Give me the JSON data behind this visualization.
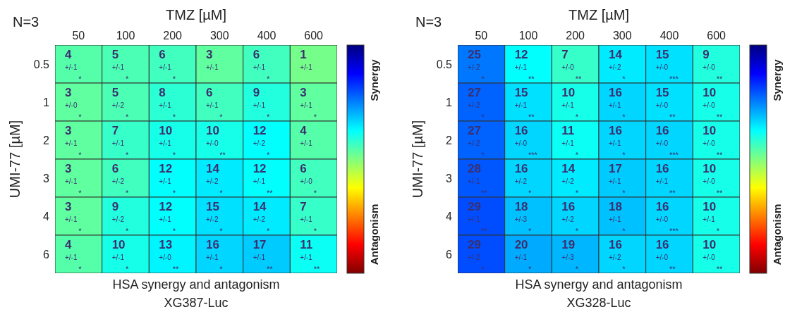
{
  "chart_data": [
    {
      "type": "heatmap",
      "data_labels": true,
      "xlabel": "TMZ [µM]",
      "ylabel": "UMI-77 [µM]",
      "title": "HSA synergy and antagonism",
      "subtitle": "XG387-Luc",
      "clabel": [
        "Synergy",
        "Antagonism"
      ],
      "categories": [
        "50",
        "100",
        "200",
        "300",
        "400",
        "600"
      ],
      "y_categories": [
        "0.5",
        "1",
        "2",
        "3",
        "4",
        "6"
      ],
      "cells": [
        [
          4,
          5,
          6,
          3,
          6,
          1
        ],
        [
          3,
          5,
          8,
          6,
          9,
          3
        ],
        [
          3,
          7,
          10,
          10,
          12,
          4
        ],
        [
          3,
          6,
          12,
          14,
          12,
          6
        ],
        [
          3,
          9,
          12,
          15,
          14,
          7
        ],
        [
          4,
          10,
          13,
          16,
          17,
          11
        ]
      ],
      "annotations": [
        "N=3",
        "+/-1 *",
        "+/-1 *",
        "+/-1 *",
        "+/-1",
        "+/-1 *",
        "+/-1",
        "+/-0 *",
        "+/-2 *",
        "+/-1 *",
        "+/-1 *",
        "+/-1 *",
        "+/-1 *",
        "+/-1 *",
        "+/-1 *",
        "+/-1 *",
        "+/-0 **",
        "+/-2 *",
        "+/-1",
        "+/-1 *",
        "+/-2 *",
        "+/-1 *",
        "+/-2 *",
        "+/-1 **",
        "+/-0 *",
        "+/-1 *",
        "+/-2 *",
        "+/-1 *",
        "+/-2 *",
        "+/-2 *",
        "+/-1 *",
        "+/-1 *",
        "+/-1 *",
        "+/-0 **",
        "+/-1 *",
        "+/-1 **",
        "+/-1 **"
      ]
    },
    {
      "type": "heatmap",
      "data_labels": true,
      "xlabel": "TMZ [µM]",
      "ylabel": "UMI-77 [µM]",
      "title": "HSA synergy and antagonism",
      "subtitle": "XG328-Luc",
      "clabel": [
        "Synergy",
        "Antagonism"
      ],
      "categories": [
        "50",
        "100",
        "200",
        "300",
        "400",
        "600"
      ],
      "y_categories": [
        "0.5",
        "1",
        "2",
        "3",
        "4",
        "6"
      ],
      "cells": [
        [
          25,
          12,
          7,
          14,
          15,
          9
        ],
        [
          27,
          15,
          10,
          16,
          15,
          10
        ],
        [
          27,
          16,
          11,
          16,
          16,
          10
        ],
        [
          28,
          16,
          14,
          17,
          16,
          10
        ],
        [
          29,
          18,
          16,
          18,
          16,
          10
        ],
        [
          29,
          20,
          19,
          16,
          16,
          10
        ]
      ],
      "annotations": [
        "N=3",
        "+/-2 *",
        "+/-1 **",
        "+/-0 **",
        "+/-2 *",
        "+/-0 ***",
        "+/-0 **",
        "+/-2 *",
        "+/-1 **",
        "+/-1 *",
        "+/-1 *",
        "+/-0 **",
        "+/-0 **",
        "+/-2 *",
        "+/-0 ***",
        "+/-1 *",
        "+/-1 *",
        "+/-0 ***",
        "+/-0 **",
        "+/-1 **",
        "+/-2 *",
        "+/-2 *",
        "+/-1 *",
        "+/-1 **",
        "+/-0 **",
        "+/-1 **",
        "+/-3 *",
        "+/-2 *",
        "+/-1 *",
        "+/-0 ***",
        "+/-1 *",
        "+/-2 *",
        "+/-1 *",
        "+/-3 *",
        "+/-2 *",
        "+/-0 **",
        "+/-0 **"
      ]
    }
  ]
}
